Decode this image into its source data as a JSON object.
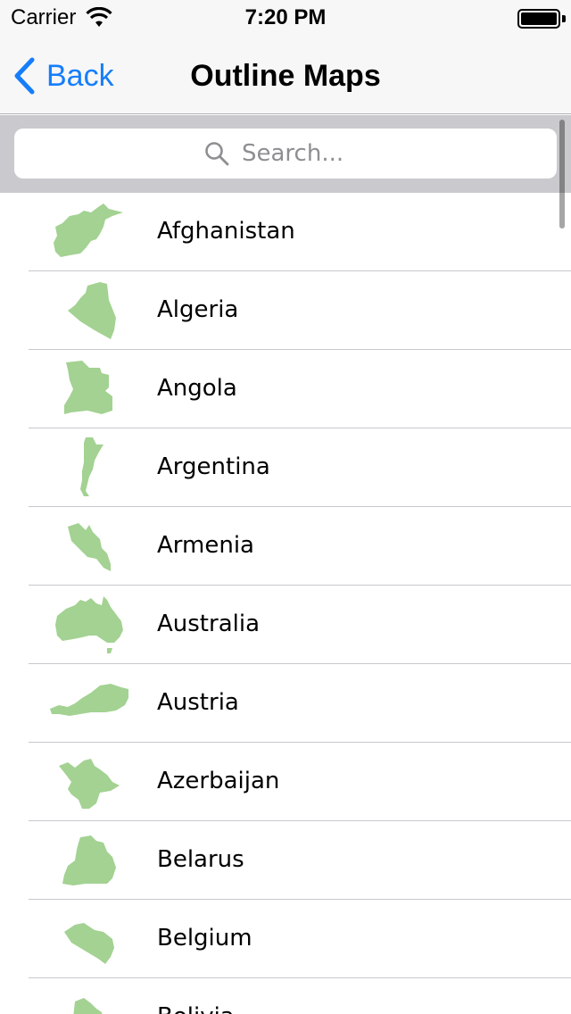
{
  "status_bar": {
    "carrier": "Carrier",
    "time": "7:20 PM"
  },
  "nav": {
    "back_label": "Back",
    "title": "Outline Maps"
  },
  "search": {
    "placeholder": "Search..."
  },
  "colors": {
    "accent": "#157efb",
    "map_fill": "#a3d292"
  },
  "countries": [
    {
      "name": "Afghanistan",
      "icon": "afghanistan-map-icon"
    },
    {
      "name": "Algeria",
      "icon": "algeria-map-icon"
    },
    {
      "name": "Angola",
      "icon": "angola-map-icon"
    },
    {
      "name": "Argentina",
      "icon": "argentina-map-icon"
    },
    {
      "name": "Armenia",
      "icon": "armenia-map-icon"
    },
    {
      "name": "Australia",
      "icon": "australia-map-icon"
    },
    {
      "name": "Austria",
      "icon": "austria-map-icon"
    },
    {
      "name": "Azerbaijan",
      "icon": "azerbaijan-map-icon"
    },
    {
      "name": "Belarus",
      "icon": "belarus-map-icon"
    },
    {
      "name": "Belgium",
      "icon": "belgium-map-icon"
    },
    {
      "name": "Bolivia",
      "icon": "bolivia-map-icon"
    }
  ]
}
